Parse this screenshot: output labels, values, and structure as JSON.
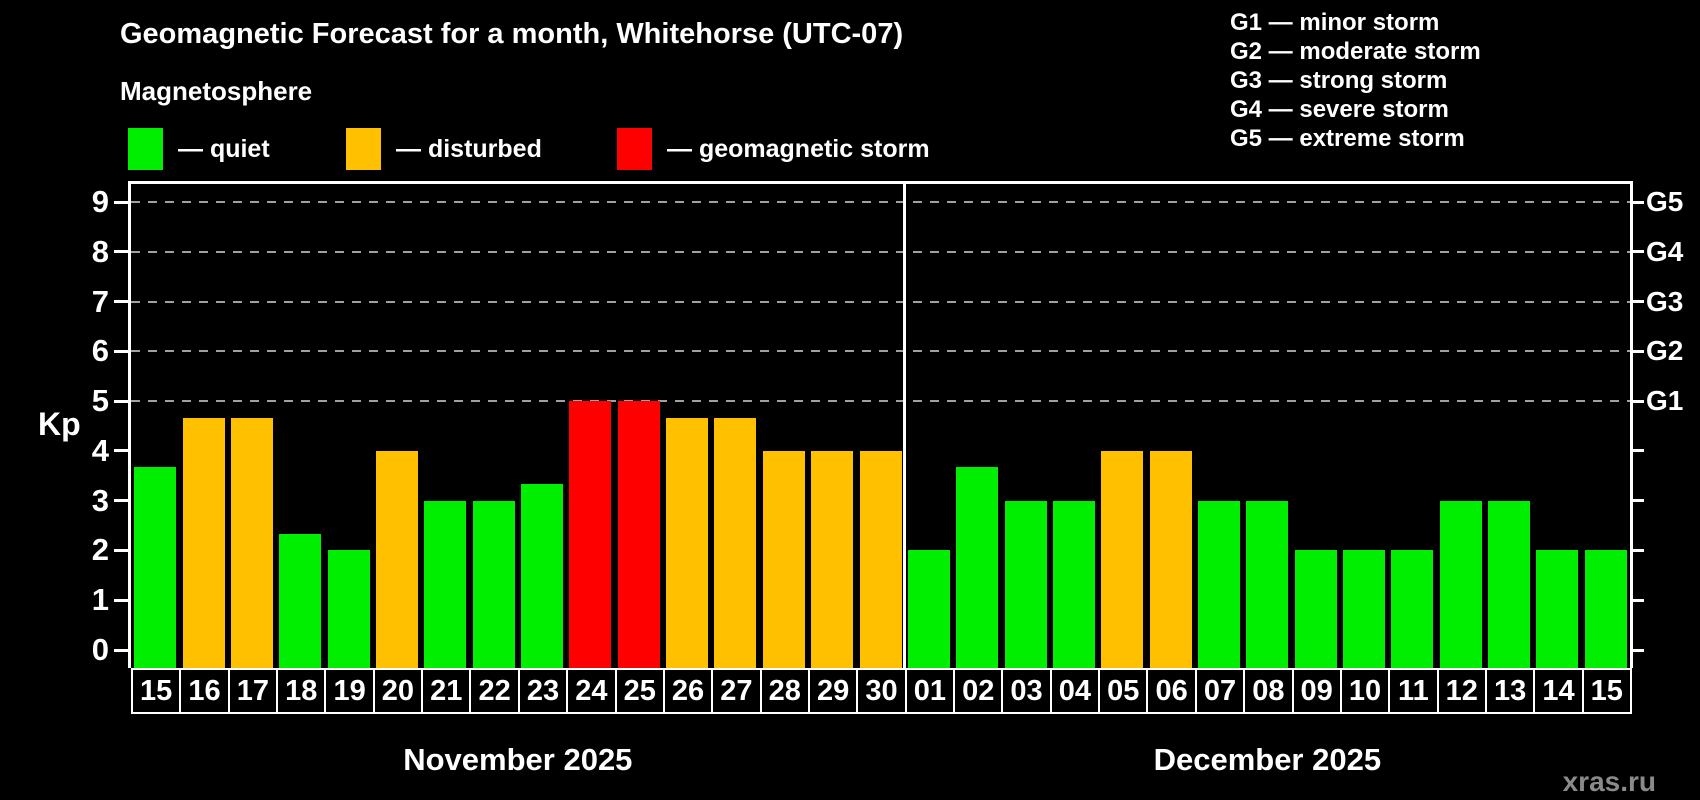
{
  "title": "Geomagnetic Forecast for a month, Whitehorse (UTC-07)",
  "subtitle": "Magnetosphere",
  "legend": {
    "items": [
      {
        "label": "— quiet",
        "status": "quiet",
        "color": "#00ee00"
      },
      {
        "label": "— disturbed",
        "status": "disturbed",
        "color": "#ffc000"
      },
      {
        "label": "— geomagnetic storm",
        "status": "storm",
        "color": "#ff0000"
      }
    ]
  },
  "g_legend": {
    "items": [
      "G1 — minor storm",
      "G2 — moderate storm",
      "G3 — strong storm",
      "G4 — severe storm",
      "G5 — extreme storm"
    ]
  },
  "watermark": "xras.ru",
  "chart_data": {
    "type": "bar",
    "title": "Geomagnetic Forecast for a month, Whitehorse (UTC-07)",
    "xlabel": "",
    "ylabel": "Kp",
    "ylim": [
      0,
      9
    ],
    "y_ticks": [
      0,
      1,
      2,
      3,
      4,
      5,
      6,
      7,
      8,
      9
    ],
    "gridlines_at": [
      5,
      6,
      7,
      8,
      9
    ],
    "grid": "dashed horizontal lines at Kp 5-9 only",
    "legend_position": "top-left",
    "right_axis_labels": [
      {
        "kp": 5,
        "label": "G1"
      },
      {
        "kp": 6,
        "label": "G2"
      },
      {
        "kp": 7,
        "label": "G3"
      },
      {
        "kp": 8,
        "label": "G4"
      },
      {
        "kp": 9,
        "label": "G5"
      }
    ],
    "status_colors": {
      "quiet": "#00ee00",
      "disturbed": "#ffc000",
      "storm": "#ff0000"
    },
    "months": [
      {
        "label": "November 2025",
        "days": [
          {
            "day": "15",
            "kp": 3.67,
            "status": "quiet"
          },
          {
            "day": "16",
            "kp": 4.67,
            "status": "disturbed"
          },
          {
            "day": "17",
            "kp": 4.67,
            "status": "disturbed"
          },
          {
            "day": "18",
            "kp": 2.33,
            "status": "quiet"
          },
          {
            "day": "19",
            "kp": 2,
            "status": "quiet"
          },
          {
            "day": "20",
            "kp": 4,
            "status": "disturbed"
          },
          {
            "day": "21",
            "kp": 3,
            "status": "quiet"
          },
          {
            "day": "22",
            "kp": 3,
            "status": "quiet"
          },
          {
            "day": "23",
            "kp": 3.33,
            "status": "quiet"
          },
          {
            "day": "24",
            "kp": 5,
            "status": "storm"
          },
          {
            "day": "25",
            "kp": 5,
            "status": "storm"
          },
          {
            "day": "26",
            "kp": 4.67,
            "status": "disturbed"
          },
          {
            "day": "27",
            "kp": 4.67,
            "status": "disturbed"
          },
          {
            "day": "28",
            "kp": 4,
            "status": "disturbed"
          },
          {
            "day": "29",
            "kp": 4,
            "status": "disturbed"
          },
          {
            "day": "30",
            "kp": 4,
            "status": "disturbed"
          }
        ]
      },
      {
        "label": "December 2025",
        "days": [
          {
            "day": "01",
            "kp": 2,
            "status": "quiet"
          },
          {
            "day": "02",
            "kp": 3.67,
            "status": "quiet"
          },
          {
            "day": "03",
            "kp": 3,
            "status": "quiet"
          },
          {
            "day": "04",
            "kp": 3,
            "status": "quiet"
          },
          {
            "day": "05",
            "kp": 4,
            "status": "disturbed"
          },
          {
            "day": "06",
            "kp": 4,
            "status": "disturbed"
          },
          {
            "day": "07",
            "kp": 3,
            "status": "quiet"
          },
          {
            "day": "08",
            "kp": 3,
            "status": "quiet"
          },
          {
            "day": "09",
            "kp": 2,
            "status": "quiet"
          },
          {
            "day": "10",
            "kp": 2,
            "status": "quiet"
          },
          {
            "day": "11",
            "kp": 2,
            "status": "quiet"
          },
          {
            "day": "12",
            "kp": 3,
            "status": "quiet"
          },
          {
            "day": "13",
            "kp": 3,
            "status": "quiet"
          },
          {
            "day": "14",
            "kp": 2,
            "status": "quiet"
          },
          {
            "day": "15",
            "kp": 2,
            "status": "quiet"
          }
        ]
      }
    ]
  }
}
